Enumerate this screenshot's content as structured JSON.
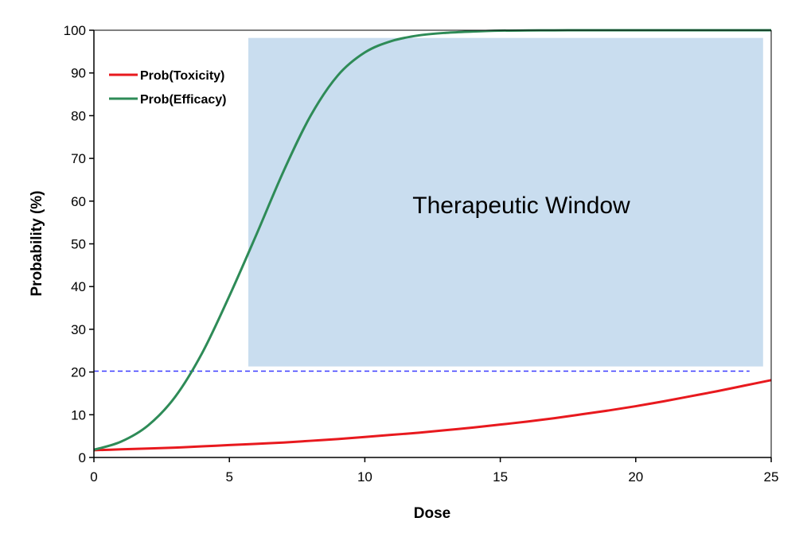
{
  "chart_data": {
    "type": "line",
    "title": "",
    "xlabel": "Dose",
    "ylabel": "Probability (%)",
    "xlim": [
      0,
      25
    ],
    "ylim": [
      0,
      100
    ],
    "x_ticks": [
      0,
      5,
      10,
      15,
      20,
      25
    ],
    "y_ticks": [
      0,
      10,
      20,
      30,
      40,
      50,
      60,
      70,
      80,
      90,
      100
    ],
    "grid": false,
    "legend_position": "top-left",
    "series": [
      {
        "name": "Prob(Toxicity)",
        "color": "#e8191e",
        "x": [
          0,
          1,
          2,
          3,
          4,
          5,
          6,
          7,
          8,
          9,
          10,
          11,
          12,
          13,
          14,
          15,
          16,
          17,
          18,
          19,
          20,
          21,
          22,
          23,
          24,
          25
        ],
        "y": [
          1.7,
          1.9,
          2.1,
          2.3,
          2.6,
          2.9,
          3.2,
          3.5,
          3.9,
          4.3,
          4.8,
          5.3,
          5.8,
          6.4,
          7.0,
          7.7,
          8.4,
          9.2,
          10.1,
          11.0,
          12.0,
          13.1,
          14.3,
          15.5,
          16.8,
          18.1
        ]
      },
      {
        "name": "Prob(Efficacy)",
        "color": "#2e8b57",
        "x": [
          0,
          1,
          2,
          3,
          4,
          5,
          6,
          7,
          8,
          9,
          10,
          11,
          12,
          13,
          14,
          15,
          16,
          17,
          18,
          19,
          20,
          21,
          22,
          23,
          24,
          25
        ],
        "y": [
          1.8,
          3.7,
          7.5,
          14.2,
          24.5,
          37.8,
          52.2,
          67.0,
          80.0,
          89.4,
          94.8,
          97.5,
          98.8,
          99.4,
          99.7,
          99.9,
          99.95,
          99.98,
          100,
          100,
          100,
          100,
          100,
          100,
          100,
          100
        ]
      }
    ],
    "annotations": {
      "therapeutic_window": {
        "label": "Therapeutic Window",
        "color": "#c9ddef",
        "x_range": [
          5.7,
          24.7
        ],
        "y_range": [
          21.3,
          98.2
        ]
      },
      "threshold_line": {
        "y": 20.2,
        "x_range": [
          0,
          24.2
        ],
        "color": "#3a3aff",
        "style": "dashed"
      }
    }
  }
}
